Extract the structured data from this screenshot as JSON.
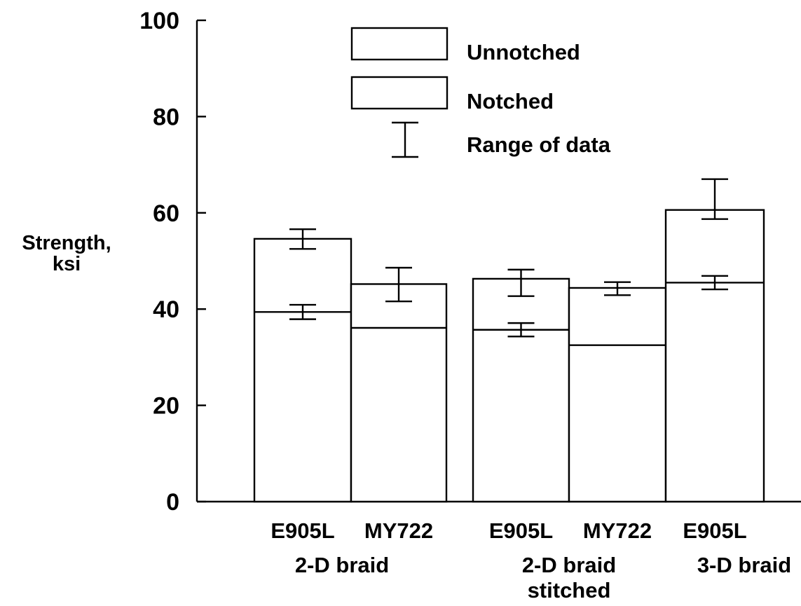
{
  "chart_data": {
    "type": "bar",
    "ylabel": [
      "Strength,",
      "ksi"
    ],
    "ylim": [
      0,
      100
    ],
    "yticks": [
      0,
      20,
      40,
      60,
      80,
      100
    ],
    "grid": false,
    "legend_position": "top-center",
    "legend": [
      {
        "label": "Unnotched",
        "kind": "box"
      },
      {
        "label": "Notched",
        "kind": "box"
      },
      {
        "label": "Range of data",
        "kind": "errorbar"
      }
    ],
    "categories": [
      "E905L",
      "MY722",
      "E905L",
      "MY722",
      "E905L"
    ],
    "groups": [
      {
        "label": [
          "2-D braid"
        ],
        "members": [
          0,
          1
        ]
      },
      {
        "label": [
          "2-D braid",
          "stitched"
        ],
        "members": [
          2,
          3
        ]
      },
      {
        "label": [
          "3-D braid"
        ],
        "members": [
          4
        ]
      }
    ],
    "series": [
      {
        "name": "Unnotched",
        "values": [
          54.6,
          45.2,
          46.3,
          44.4,
          60.6
        ],
        "range": [
          [
            52.5,
            56.6
          ],
          [
            41.6,
            48.6
          ],
          [
            42.7,
            48.2
          ],
          [
            42.9,
            45.6
          ],
          [
            58.7,
            67.0
          ]
        ]
      },
      {
        "name": "Notched",
        "values": [
          39.4,
          36.1,
          35.7,
          32.5,
          45.5
        ],
        "range": [
          [
            37.9,
            40.9
          ],
          null,
          [
            34.3,
            37.1
          ],
          null,
          [
            44.1,
            46.9
          ]
        ]
      }
    ]
  }
}
